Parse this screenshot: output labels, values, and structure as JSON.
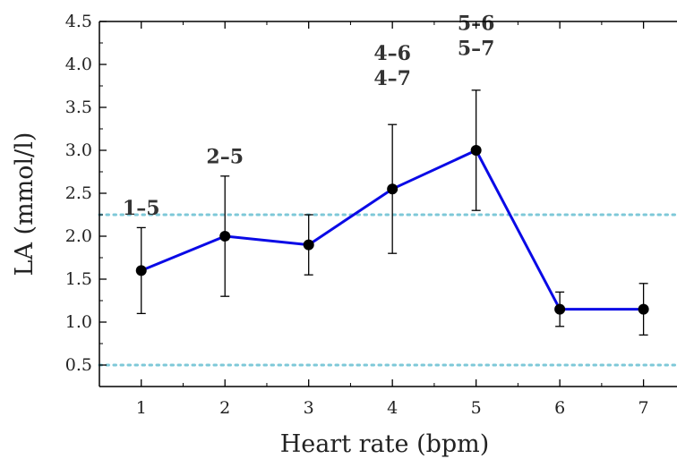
{
  "chart_data": {
    "type": "line",
    "title": "",
    "xlabel": "Heart rate (bpm)",
    "ylabel": "LA (mmol/l)",
    "xlim": [
      0.5,
      7.4
    ],
    "ylim": [
      0.25,
      4.5
    ],
    "x_ticks": [
      1,
      2,
      3,
      4,
      5,
      6,
      7
    ],
    "y_ticks": [
      "0.5",
      "1.0",
      "1.5",
      "2.0",
      "2.5",
      "3.0",
      "3.5",
      "4.0",
      "4.5"
    ],
    "grid": false,
    "legend": "none",
    "series": [
      {
        "color": "#0a0ae6",
        "marker_color": "#000000",
        "x": [
          1,
          2,
          3,
          4,
          5,
          6,
          7
        ],
        "y": [
          1.6,
          2.0,
          1.9,
          2.55,
          3.0,
          1.15,
          1.15
        ],
        "error_low": [
          1.1,
          1.3,
          1.55,
          1.8,
          2.3,
          0.95,
          0.85
        ],
        "error_high": [
          2.1,
          2.7,
          2.25,
          3.3,
          3.7,
          1.35,
          1.45
        ]
      }
    ],
    "reference_lines": [
      {
        "y": 2.25,
        "style": "dotted",
        "color": "#7ec8d8"
      },
      {
        "y": 0.5,
        "style": "dotted",
        "color": "#7ec8d8"
      }
    ],
    "annotations": [
      {
        "x": 1,
        "y": 2.25,
        "lines": [
          "1–5"
        ]
      },
      {
        "x": 2,
        "y": 2.85,
        "lines": [
          "2–5"
        ]
      },
      {
        "x": 4,
        "y": 4.05,
        "lines": [
          "4–6",
          "4–7"
        ]
      },
      {
        "x": 5,
        "y": 4.4,
        "lines": [
          "5–6",
          "5–7"
        ]
      }
    ]
  }
}
